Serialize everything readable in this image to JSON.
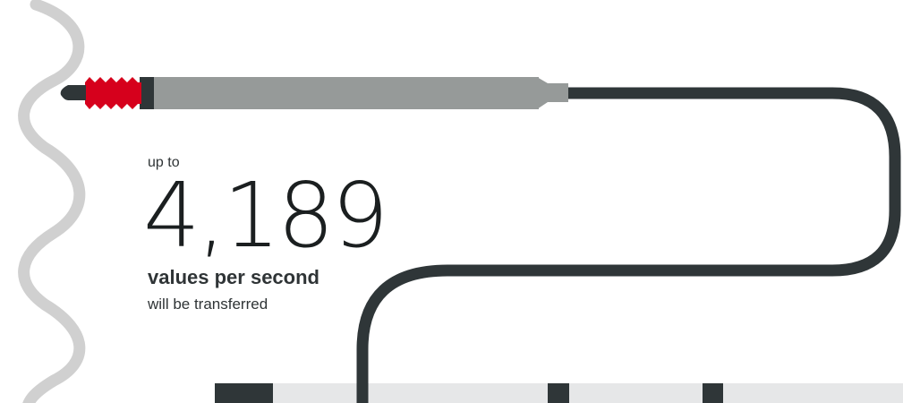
{
  "lead": "up to",
  "figure": "4,189",
  "unit": "values per second",
  "note": "will be transferred"
}
